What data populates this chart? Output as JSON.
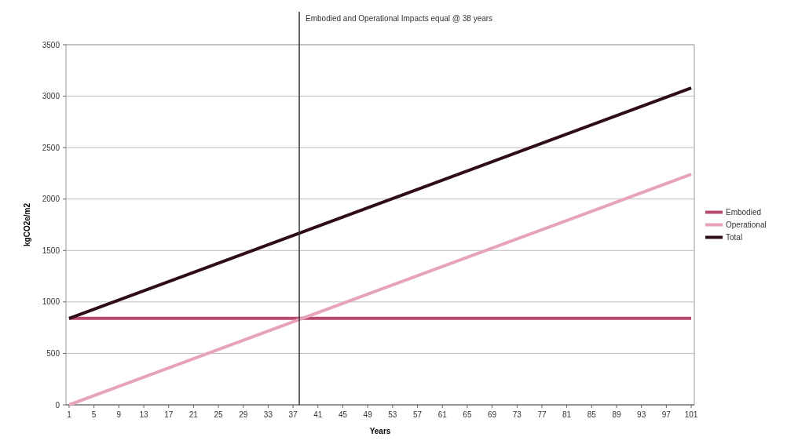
{
  "chart_data": {
    "type": "line",
    "xlabel": "Years",
    "ylabel": "kgCO2e/m2",
    "xlim": [
      0.5,
      101.5
    ],
    "xticks": [
      1,
      5,
      9,
      13,
      17,
      21,
      25,
      29,
      33,
      37,
      41,
      45,
      49,
      53,
      57,
      61,
      65,
      69,
      73,
      77,
      81,
      85,
      89,
      93,
      97,
      101
    ],
    "ylim": [
      0,
      3500
    ],
    "yticks": [
      0,
      500,
      1000,
      1500,
      2000,
      2500,
      3000,
      3500
    ],
    "grid": "y",
    "legend": "right",
    "marker": "none",
    "line_style": "solid",
    "x": [
      1,
      101
    ],
    "series": [
      {
        "name": "Embodied",
        "color": "#b84a72",
        "values": [
          840,
          840
        ]
      },
      {
        "name": "Operational",
        "color": "#e8a3b8",
        "values": [
          0,
          2240
        ]
      },
      {
        "name": "Total",
        "color": "#2e0c18",
        "values": [
          840,
          3080
        ]
      }
    ],
    "ref_lines": [
      {
        "axis": "x",
        "value": 38,
        "label": "Embodied and Operational Impacts equal @ 38 years",
        "color": "#333333"
      }
    ]
  }
}
